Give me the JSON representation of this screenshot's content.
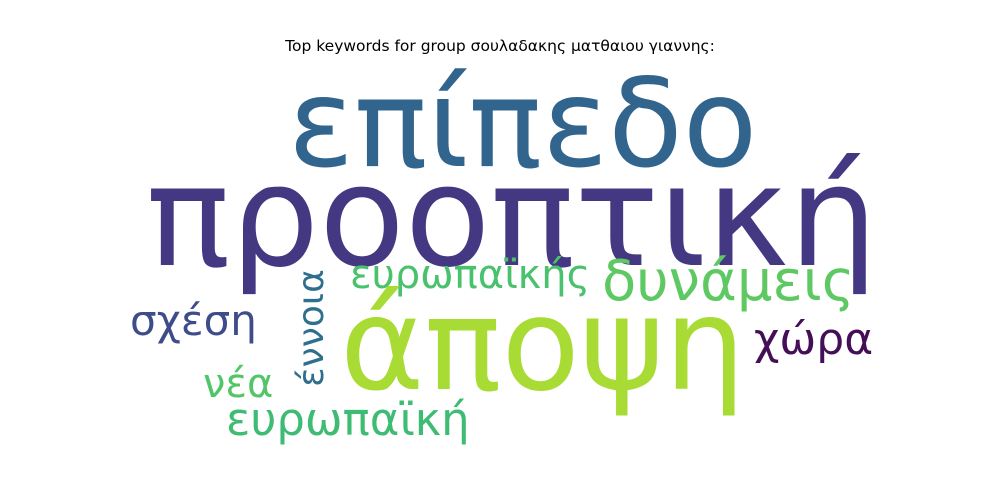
{
  "title": "Top keywords for group σουλαδακης ματθαιου γιαννης:",
  "words": [
    {
      "text": "προοπτική",
      "color": "#453882"
    },
    {
      "text": "επίπεδο",
      "color": "#32658e"
    },
    {
      "text": "άποψη",
      "color": "#a8db34"
    },
    {
      "text": "δυνάμεις",
      "color": "#5ec962"
    },
    {
      "text": "ευρωπαϊκής",
      "color": "#4ac16d"
    },
    {
      "text": "ευρωπαϊκή",
      "color": "#3fbc73"
    },
    {
      "text": "σχέση",
      "color": "#3e4c8a"
    },
    {
      "text": "χώρα",
      "color": "#440f56"
    },
    {
      "text": "έννοια",
      "color": "#2e6f8e"
    },
    {
      "text": "νέα",
      "color": "#52c569"
    }
  ]
}
